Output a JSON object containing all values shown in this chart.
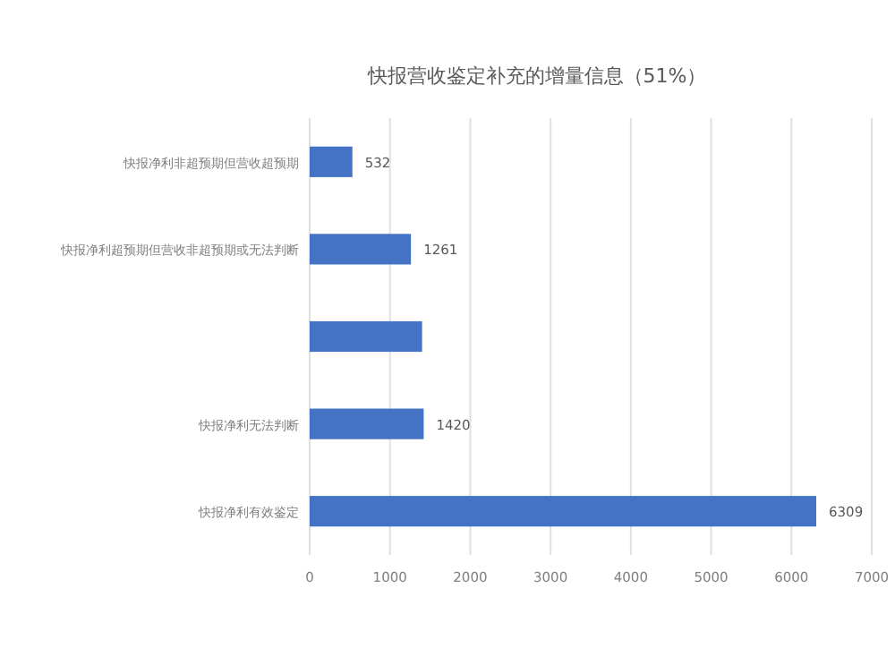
{
  "chart_data": {
    "type": "bar",
    "orientation": "horizontal",
    "title": "快报营收鉴定补充的增量信息（51%）",
    "categories": [
      "快报净利非超预期但营收超预期",
      "快报净利超预期但营收非超预期或无法判断",
      null,
      "快报净利无法判断",
      "快报净利有效鉴定"
    ],
    "values": [
      532,
      1261,
      1400,
      1420,
      6309
    ],
    "value_labels": [
      "532",
      "1261",
      null,
      "1420",
      "6309"
    ],
    "color": "#4472c4",
    "xlim": [
      0,
      7000
    ],
    "xticks": [
      0,
      1000,
      2000,
      3000,
      4000,
      5000,
      6000,
      7000
    ],
    "grid": "x"
  }
}
